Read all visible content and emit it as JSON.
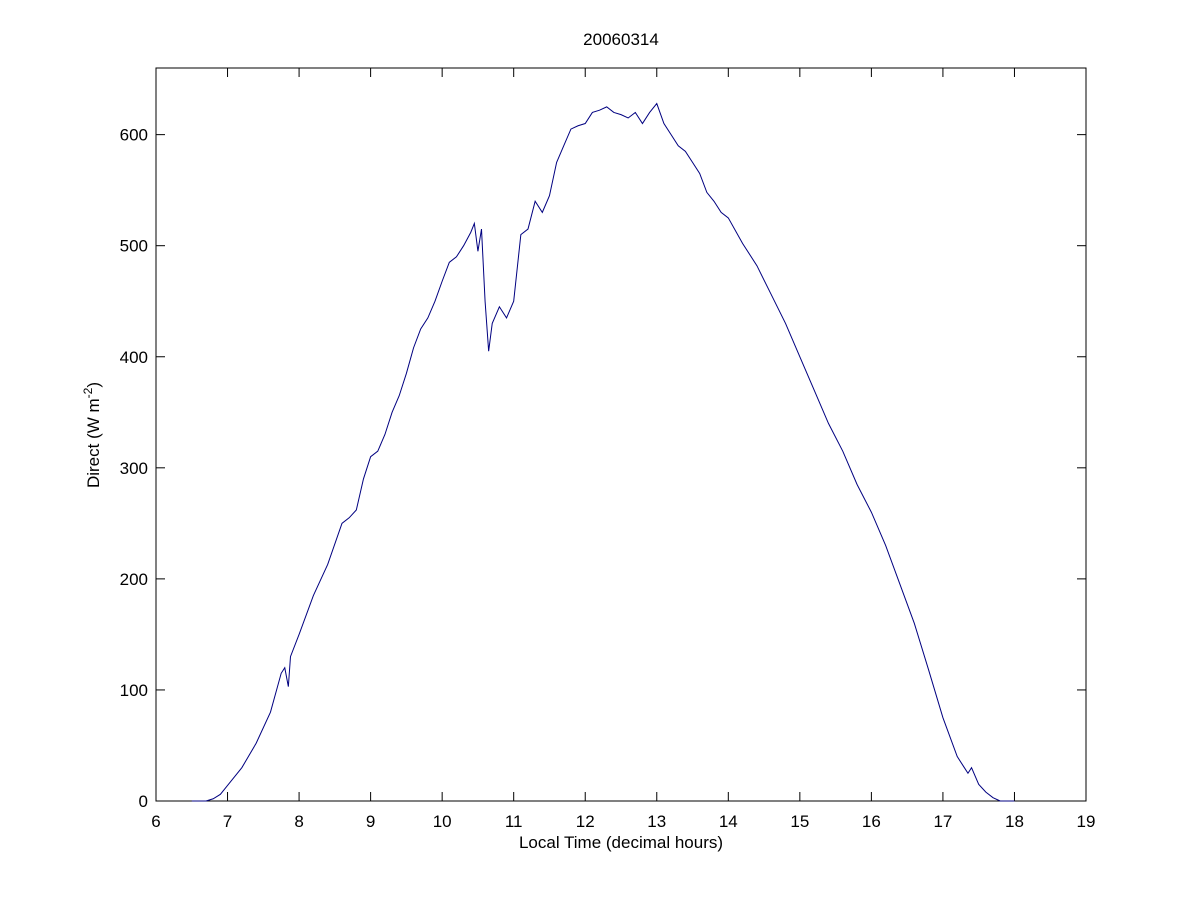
{
  "chart_data": {
    "type": "line",
    "title": "20060314",
    "xlabel": "Local Time (decimal hours)",
    "ylabel_parts": [
      "Direct (W m",
      "-2",
      ")"
    ],
    "xlim": [
      6,
      19
    ],
    "ylim": [
      0,
      660
    ],
    "xticks": [
      6,
      7,
      8,
      9,
      10,
      11,
      12,
      13,
      14,
      15,
      16,
      17,
      18,
      19
    ],
    "yticks": [
      0,
      100,
      200,
      300,
      400,
      500,
      600
    ],
    "grid": false,
    "x": [
      6.5,
      6.7,
      6.8,
      6.9,
      7.0,
      7.2,
      7.4,
      7.6,
      7.75,
      7.8,
      7.85,
      7.88,
      8.0,
      8.2,
      8.4,
      8.6,
      8.7,
      8.8,
      8.9,
      9.0,
      9.1,
      9.2,
      9.3,
      9.4,
      9.5,
      9.6,
      9.7,
      9.8,
      9.9,
      10.0,
      10.1,
      10.2,
      10.3,
      10.4,
      10.45,
      10.5,
      10.55,
      10.6,
      10.65,
      10.7,
      10.8,
      10.9,
      11.0,
      11.1,
      11.2,
      11.3,
      11.4,
      11.5,
      11.6,
      11.7,
      11.8,
      11.9,
      12.0,
      12.1,
      12.2,
      12.3,
      12.4,
      12.5,
      12.6,
      12.7,
      12.8,
      12.9,
      13.0,
      13.1,
      13.2,
      13.3,
      13.4,
      13.5,
      13.6,
      13.7,
      13.8,
      13.9,
      14.0,
      14.2,
      14.4,
      14.6,
      14.8,
      15.0,
      15.2,
      15.4,
      15.6,
      15.8,
      16.0,
      16.2,
      16.4,
      16.6,
      16.8,
      17.0,
      17.2,
      17.3,
      17.35,
      17.4,
      17.5,
      17.6,
      17.7,
      17.8,
      18.0
    ],
    "series": [
      {
        "name": "Direct",
        "color": "#000080",
        "values": [
          0,
          0,
          2,
          6,
          14,
          30,
          52,
          80,
          115,
          120,
          103,
          130,
          150,
          185,
          213,
          250,
          255,
          262,
          290,
          310,
          315,
          330,
          350,
          365,
          385,
          408,
          425,
          435,
          450,
          468,
          485,
          490,
          500,
          512,
          520,
          495,
          515,
          450,
          405,
          430,
          445,
          435,
          450,
          510,
          515,
          540,
          530,
          545,
          575,
          590,
          605,
          608,
          610,
          620,
          622,
          625,
          620,
          618,
          615,
          620,
          610,
          620,
          628,
          610,
          600,
          590,
          585,
          575,
          565,
          548,
          540,
          530,
          525,
          502,
          482,
          456,
          430,
          400,
          370,
          340,
          315,
          285,
          260,
          230,
          195,
          160,
          118,
          75,
          40,
          30,
          25,
          30,
          15,
          8,
          3,
          0,
          0
        ]
      }
    ]
  }
}
